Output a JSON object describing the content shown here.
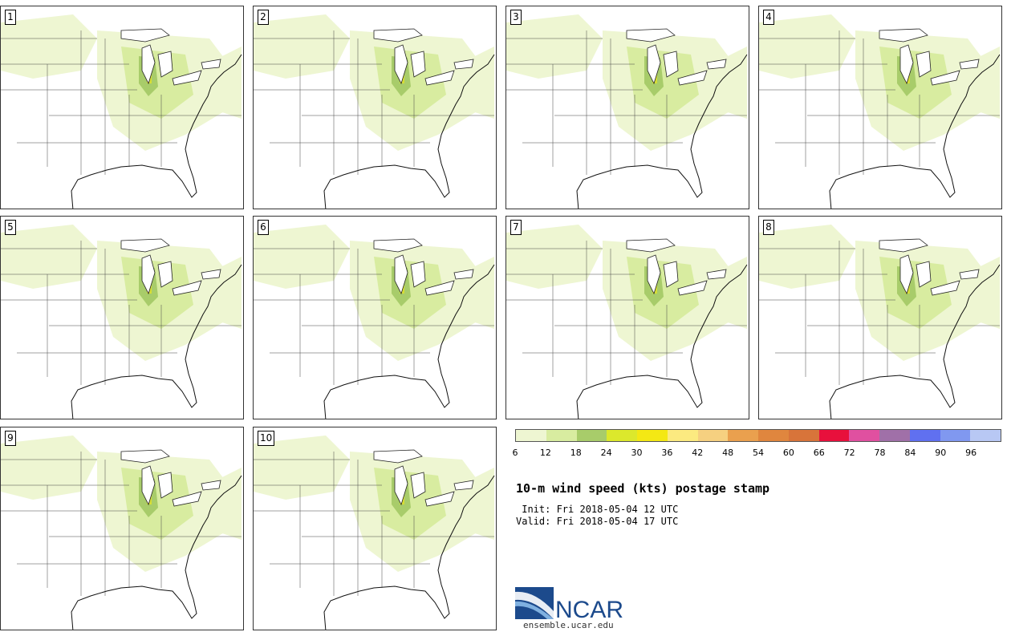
{
  "panels": [
    {
      "label": "1"
    },
    {
      "label": "2"
    },
    {
      "label": "3"
    },
    {
      "label": "4"
    },
    {
      "label": "5"
    },
    {
      "label": "6"
    },
    {
      "label": "7"
    },
    {
      "label": "8"
    },
    {
      "label": "9"
    },
    {
      "label": "10"
    }
  ],
  "legend": {
    "colors": [
      "#eef6d2",
      "#d8eca0",
      "#a8cc6a",
      "#dce82c",
      "#f4e814",
      "#fcea80",
      "#f6d080",
      "#eaa04e",
      "#e0863e",
      "#d8743a",
      "#e8103c",
      "#e050a0",
      "#a070a8",
      "#6070f0",
      "#8098f0",
      "#b8c8f4"
    ],
    "ticks": [
      "6",
      "12",
      "18",
      "24",
      "30",
      "36",
      "42",
      "48",
      "54",
      "60",
      "66",
      "72",
      "78",
      "84",
      "90",
      "96"
    ]
  },
  "title": "10-m wind speed (kts) postage stamp",
  "init": " Init: Fri 2018-05-04 12 UTC",
  "valid": "Valid: Fri 2018-05-04 17 UTC",
  "logo": {
    "text": "NCAR",
    "url": "ensemble.ucar.edu",
    "color": "#1c4a8c"
  }
}
